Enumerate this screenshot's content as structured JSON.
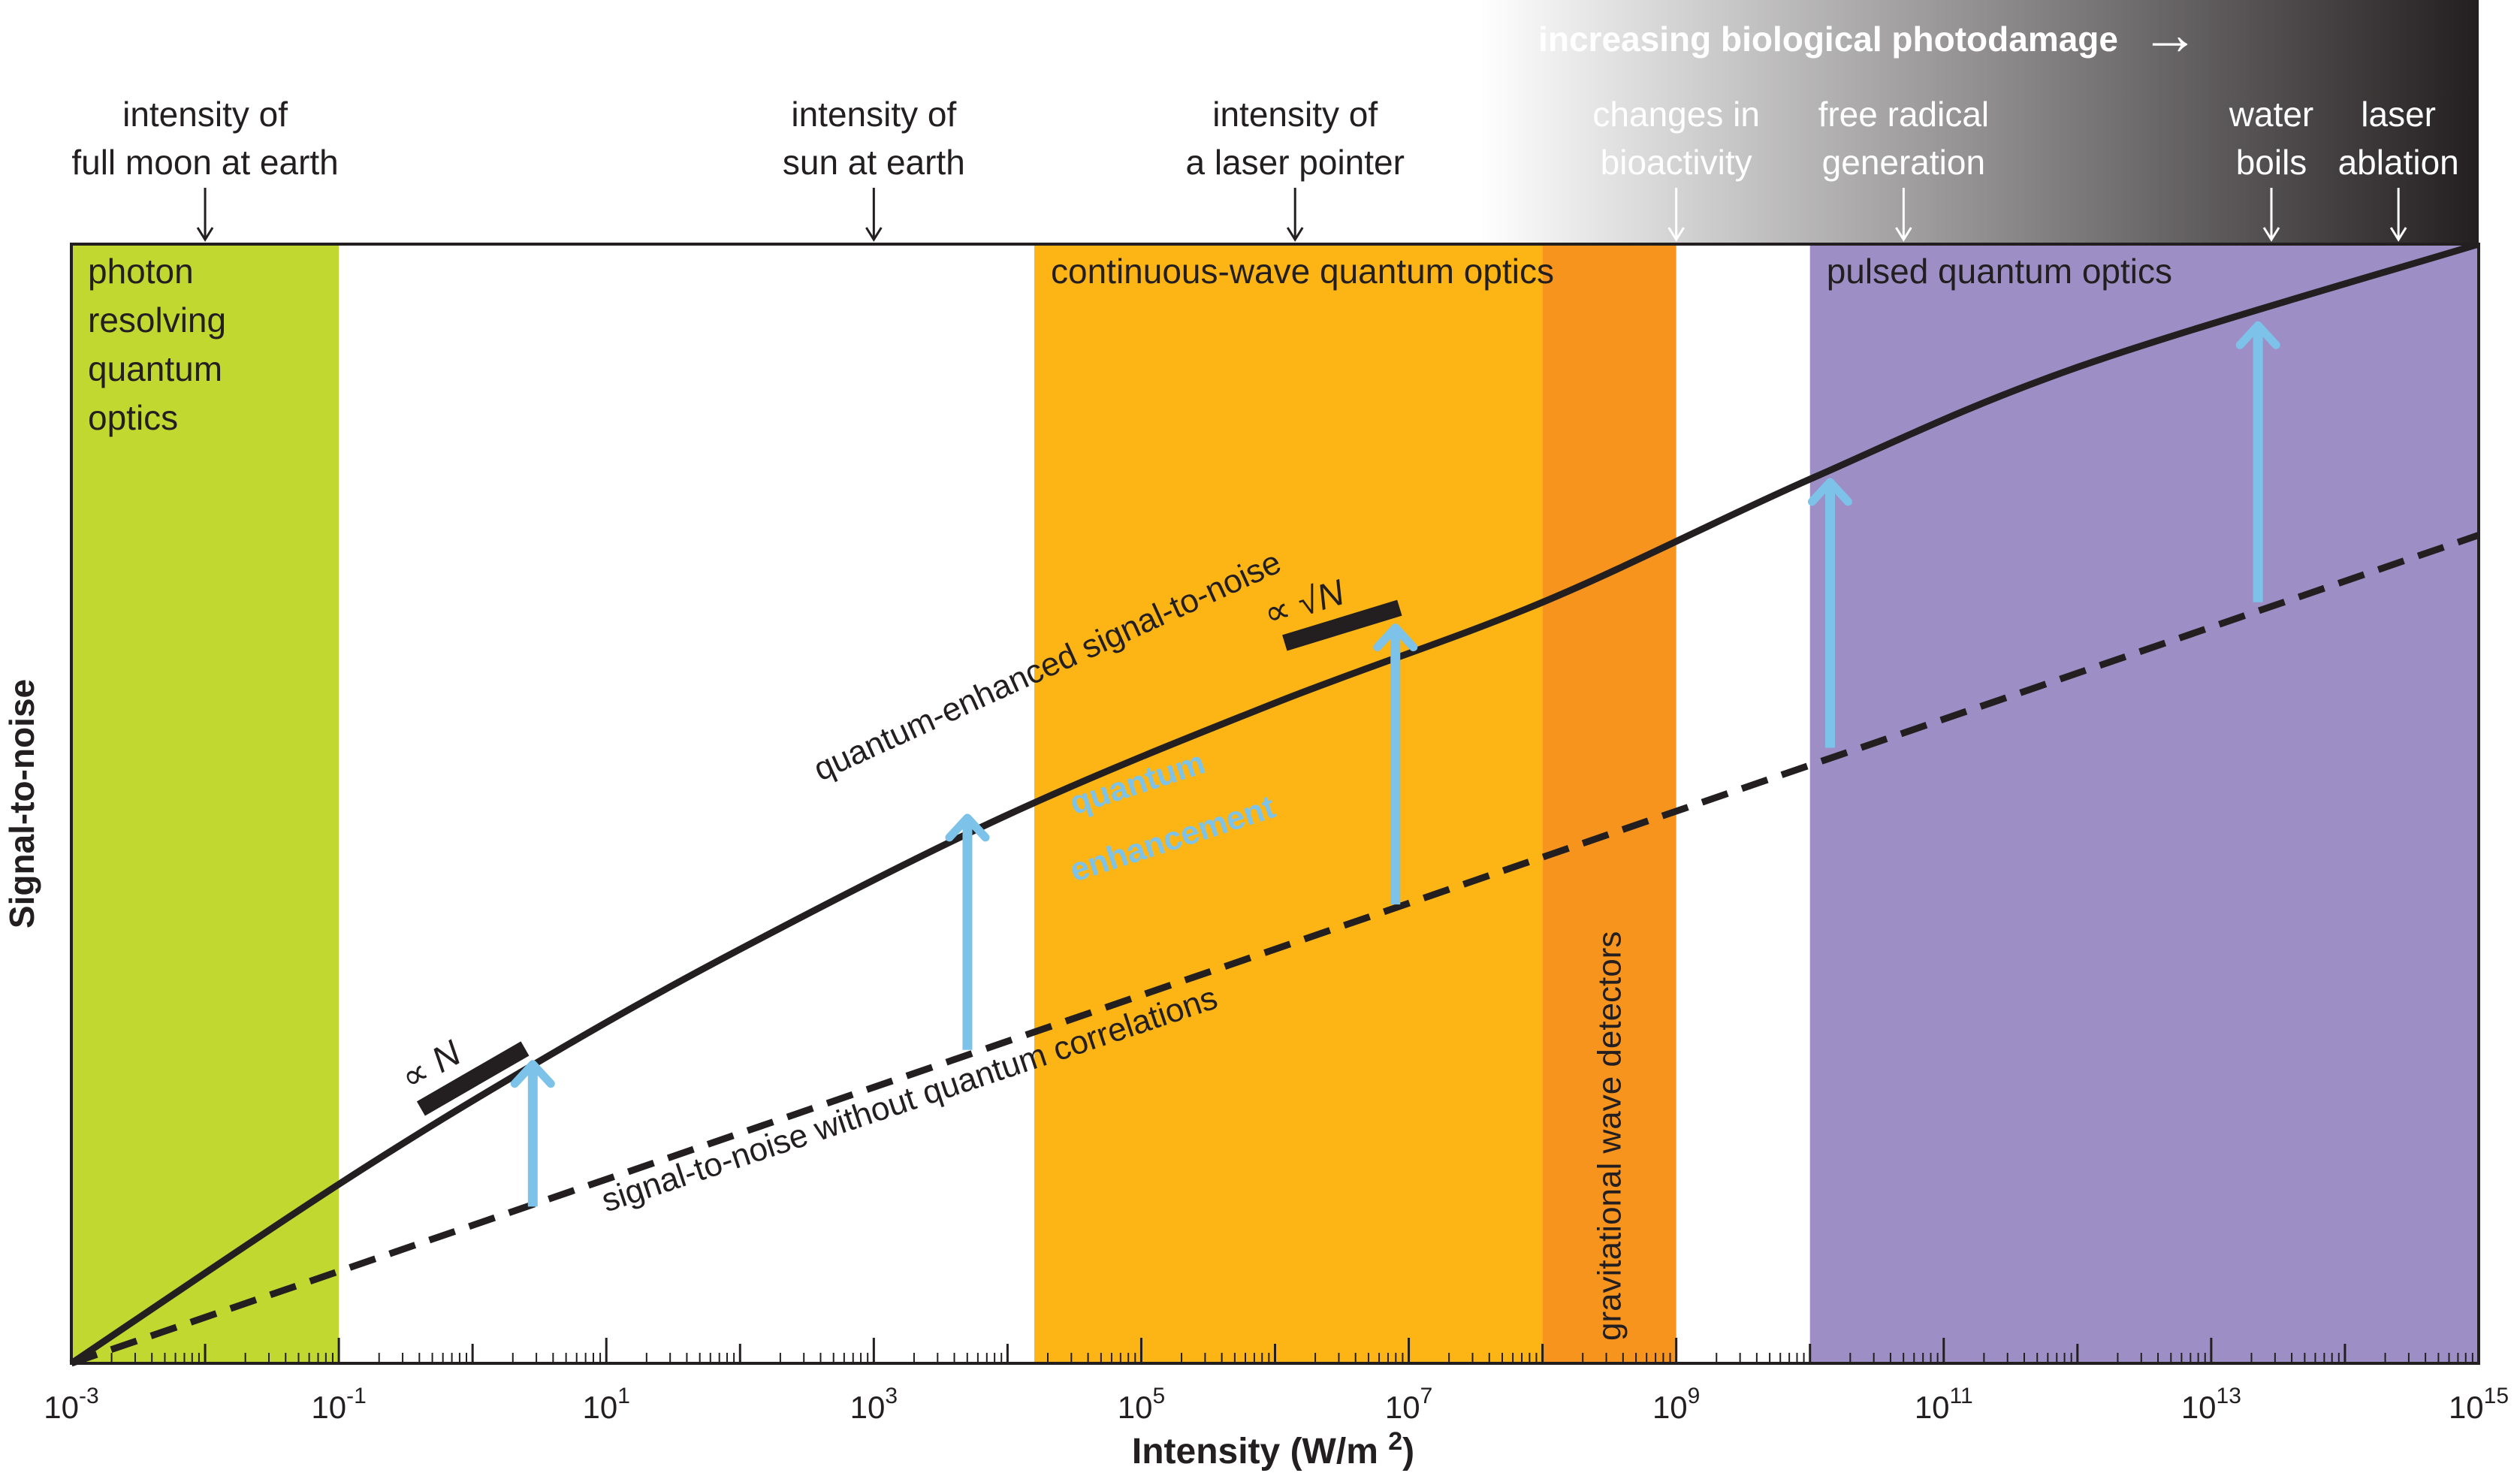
{
  "chart_data": {
    "type": "line",
    "title": "",
    "xlabel": "Intensity (W/m2)",
    "ylabel": "Signal-to-noise",
    "xscale": "log",
    "x_exponent_range": [
      -3,
      15
    ],
    "grid": false,
    "x_ticks": [
      {
        "base": "10",
        "exp": "-3"
      },
      {
        "base": "10",
        "exp": "-1"
      },
      {
        "base": "10",
        "exp": "1"
      },
      {
        "base": "10",
        "exp": "3"
      },
      {
        "base": "10",
        "exp": "5"
      },
      {
        "base": "10",
        "exp": "7"
      },
      {
        "base": "10",
        "exp": "9"
      },
      {
        "base": "10",
        "exp": "11"
      },
      {
        "base": "10",
        "exp": "13"
      },
      {
        "base": "10",
        "exp": "15"
      }
    ],
    "series": [
      {
        "name": "quantum-enhanced signal-to-noise",
        "style": "solid",
        "color": "#231f20",
        "points": [
          [
            -3,
            0.0
          ],
          [
            -1,
            0.16
          ],
          [
            0.5,
            0.27
          ],
          [
            2,
            0.37
          ],
          [
            4,
            0.49
          ],
          [
            6,
            0.59
          ],
          [
            8,
            0.68
          ],
          [
            10,
            0.79
          ],
          [
            12,
            0.89
          ],
          [
            15,
            1.0
          ]
        ]
      },
      {
        "name": "signal-to-noise without quantum correlations",
        "style": "dashed",
        "color": "#231f20",
        "points": [
          [
            -3,
            0.0
          ],
          [
            15,
            0.74
          ]
        ]
      }
    ],
    "regions": [
      {
        "label": "photon resolving quantum optics",
        "lines": [
          "photon",
          "resolving",
          "quantum",
          "optics"
        ],
        "x0": -3,
        "x1": -1,
        "color": "#c1d831",
        "label_pos": "top-left",
        "label_orient": "horizontal"
      },
      {
        "label": "continuous-wave quantum optics",
        "lines": [
          "continuous-wave quantum optics"
        ],
        "x0": 4.2,
        "x1": 8,
        "color": "#fdb515",
        "label_pos": "top-left",
        "label_orient": "horizontal"
      },
      {
        "label": "gravitational wave detectors",
        "lines": [
          "gravitational wave detectors"
        ],
        "x0": 8,
        "x1": 9,
        "color": "#f7941d",
        "label_pos": "bottom",
        "label_orient": "vertical"
      },
      {
        "label": "pulsed quantum optics",
        "lines": [
          "pulsed quantum optics"
        ],
        "x0": 10,
        "x1": 15,
        "color": "#9d8fc5",
        "label_pos": "top-left",
        "label_orient": "horizontal"
      }
    ],
    "enhancement_arrows": [
      {
        "x": 0.45,
        "from": 0.14,
        "to": 0.27
      },
      {
        "x": 3.7,
        "from": 0.28,
        "to": 0.49
      },
      {
        "x": 6.9,
        "from": 0.41,
        "to": 0.66
      },
      {
        "x": 10.15,
        "from": 0.55,
        "to": 0.79
      },
      {
        "x": 13.35,
        "from": 0.68,
        "to": 0.93
      }
    ],
    "series_labels": [
      {
        "text": "quantum-enhanced signal-to-noise",
        "x": 2.6,
        "y": 0.52,
        "angle": -24.5,
        "anchor": "start"
      },
      {
        "text": "signal-to-noise without quantum correlations",
        "x": 1.0,
        "y": 0.135,
        "angle": -18.5,
        "anchor": "start"
      },
      {
        "text": "quantum",
        "x": 4.5,
        "y": 0.49,
        "angle": -18,
        "anchor": "start",
        "color": "#7dc2e8",
        "bold": true
      },
      {
        "text": "enhancement",
        "x": 4.5,
        "y": 0.43,
        "angle": -18,
        "anchor": "start",
        "color": "#7dc2e8",
        "bold": true
      }
    ],
    "scaling_markers": [
      {
        "label": "∝ N",
        "x": 0.0,
        "y": 0.255,
        "angle": -30
      },
      {
        "label": "∝ √N",
        "x": 6.5,
        "y": 0.66,
        "angle": -17
      }
    ],
    "intensity_annotations": [
      {
        "lines": [
          "intensity of",
          "full moon at earth"
        ],
        "x": -2.0,
        "color": "#231f20"
      },
      {
        "lines": [
          "intensity of",
          "sun at earth"
        ],
        "x": 3.0,
        "color": "#231f20"
      },
      {
        "lines": [
          "intensity of",
          "a laser pointer"
        ],
        "x": 6.15,
        "color": "#231f20"
      },
      {
        "lines": [
          "changes in",
          "bioactivity"
        ],
        "x": 9.0,
        "color": "#ffffff"
      },
      {
        "lines": [
          "free radical",
          "generation"
        ],
        "x": 10.7,
        "color": "#ffffff"
      },
      {
        "lines": [
          "water",
          "boils"
        ],
        "x": 13.45,
        "color": "#ffffff"
      },
      {
        "lines": [
          "laser",
          "ablation"
        ],
        "x": 14.4,
        "color": "#ffffff"
      }
    ],
    "photodamage_banner": {
      "text": "increasing biological photodamage",
      "arrow": "→",
      "color": "#ffffff"
    },
    "colors": {
      "axis": "#231f20",
      "enhancement_arrow": "#7dc2e8",
      "gradient_start": "#ffffff",
      "gradient_end": "#231f20"
    }
  }
}
